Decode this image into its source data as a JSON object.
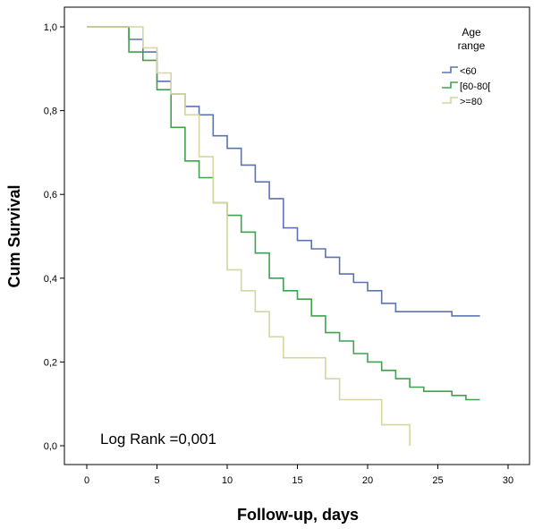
{
  "chart_data": {
    "type": "line",
    "xlabel": "Follow-up, days",
    "ylabel": "Cum Survival",
    "xlim": [
      0,
      30
    ],
    "ylim": [
      0.0,
      1.0
    ],
    "xticks": [
      "0",
      "5",
      "10",
      "15",
      "20",
      "25",
      "30"
    ],
    "yticks": [
      "0,0",
      "0,2",
      "0,4",
      "0,6",
      "0,8",
      "1,0"
    ],
    "grid": false,
    "legend": {
      "title_line1": "Age",
      "title_line2": "range",
      "placement": "top-right"
    },
    "annotation": "Log Rank =0,001",
    "series": [
      {
        "name": "<60",
        "color": "#5b73b0",
        "steps": [
          [
            0,
            1.0
          ],
          [
            3,
            0.97
          ],
          [
            4,
            0.94
          ],
          [
            5,
            0.87
          ],
          [
            6,
            0.84
          ],
          [
            7,
            0.81
          ],
          [
            8,
            0.79
          ],
          [
            9,
            0.74
          ],
          [
            10,
            0.71
          ],
          [
            11,
            0.67
          ],
          [
            12,
            0.63
          ],
          [
            13,
            0.59
          ],
          [
            14,
            0.52
          ],
          [
            15,
            0.49
          ],
          [
            16,
            0.47
          ],
          [
            17,
            0.45
          ],
          [
            18,
            0.41
          ],
          [
            19,
            0.39
          ],
          [
            20,
            0.37
          ],
          [
            21,
            0.34
          ],
          [
            22,
            0.32
          ],
          [
            26,
            0.31
          ],
          [
            28,
            0.31
          ]
        ]
      },
      {
        "name": "[60-80[",
        "color": "#3fa34d",
        "steps": [
          [
            0,
            1.0
          ],
          [
            3,
            0.94
          ],
          [
            4,
            0.92
          ],
          [
            5,
            0.85
          ],
          [
            6,
            0.76
          ],
          [
            7,
            0.68
          ],
          [
            8,
            0.64
          ],
          [
            9,
            0.58
          ],
          [
            10,
            0.55
          ],
          [
            11,
            0.51
          ],
          [
            12,
            0.46
          ],
          [
            13,
            0.4
          ],
          [
            14,
            0.37
          ],
          [
            15,
            0.35
          ],
          [
            16,
            0.31
          ],
          [
            17,
            0.27
          ],
          [
            18,
            0.25
          ],
          [
            19,
            0.22
          ],
          [
            20,
            0.2
          ],
          [
            21,
            0.18
          ],
          [
            22,
            0.16
          ],
          [
            23,
            0.14
          ],
          [
            24,
            0.13
          ],
          [
            26,
            0.12
          ],
          [
            27,
            0.11
          ],
          [
            28,
            0.11
          ]
        ]
      },
      {
        "name": ">=80",
        "color": "#d6d6a0",
        "steps": [
          [
            0,
            1.0
          ],
          [
            4,
            0.95
          ],
          [
            5,
            0.89
          ],
          [
            6,
            0.84
          ],
          [
            7,
            0.79
          ],
          [
            8,
            0.69
          ],
          [
            9,
            0.58
          ],
          [
            10,
            0.42
          ],
          [
            11,
            0.37
          ],
          [
            12,
            0.32
          ],
          [
            13,
            0.26
          ],
          [
            14,
            0.21
          ],
          [
            17,
            0.16
          ],
          [
            18,
            0.11
          ],
          [
            21,
            0.05
          ],
          [
            23,
            0.0
          ]
        ]
      }
    ]
  }
}
